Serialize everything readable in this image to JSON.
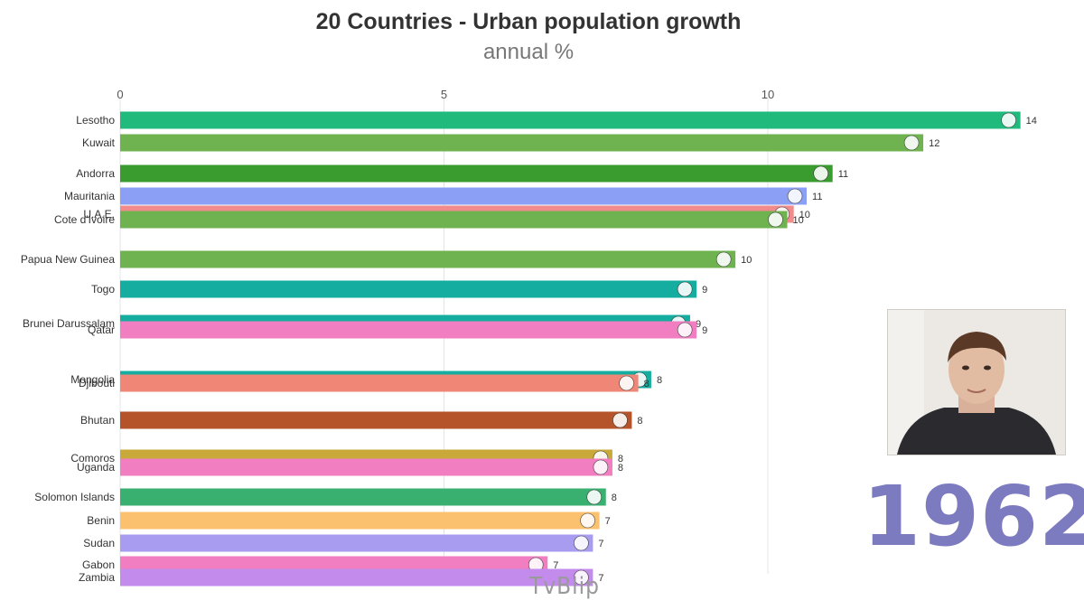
{
  "title": "20 Countries - Urban population growth",
  "subtitle": "annual %",
  "year": "1962",
  "watermark": "TvBlip",
  "chart_data": {
    "type": "bar",
    "orientation": "horizontal",
    "xlim": [
      0,
      14
    ],
    "xticks": [
      0,
      5,
      10
    ],
    "grid": true,
    "categories": [
      "Lesotho",
      "Kuwait",
      "Andorra",
      "Mauritania",
      "U.A.E.",
      "Cote d'Ivoire",
      "Papua New Guinea",
      "Togo",
      "Brunei Darussalam",
      "Qatar",
      "Mongolia",
      "Djibouti",
      "Bhutan",
      "Comoros",
      "Uganda",
      "Solomon Islands",
      "Benin",
      "Sudan",
      "Gabon",
      "Zambia"
    ],
    "values": [
      13.9,
      12.4,
      11.0,
      10.6,
      10.4,
      10.3,
      9.5,
      8.9,
      8.8,
      8.9,
      8.2,
      8.0,
      7.9,
      7.6,
      7.6,
      7.5,
      7.4,
      7.3,
      6.6,
      7.3
    ],
    "value_labels": [
      "14",
      "12",
      "11",
      "11",
      "10",
      "10",
      "10",
      "9",
      "9",
      "9",
      "8",
      "8",
      "8",
      "8",
      "8",
      "8",
      "7",
      "7",
      "7",
      "7"
    ],
    "colors": [
      "#1fba7c",
      "#6fb351",
      "#3a9b2f",
      "#8ba0f5",
      "#f28b8b",
      "#6fb351",
      "#6fb351",
      "#14ada0",
      "#14ada0",
      "#f07ec0",
      "#14ada0",
      "#f08675",
      "#b5532a",
      "#c9a93a",
      "#f07ec0",
      "#3ab070",
      "#fbc16e",
      "#a79cf0",
      "#f07ec0",
      "#c38bec"
    ],
    "y_center": [
      133,
      158,
      192,
      217,
      237,
      243,
      287,
      320,
      358,
      365,
      420,
      424,
      465,
      507,
      517,
      550,
      576,
      601,
      625,
      639
    ]
  }
}
